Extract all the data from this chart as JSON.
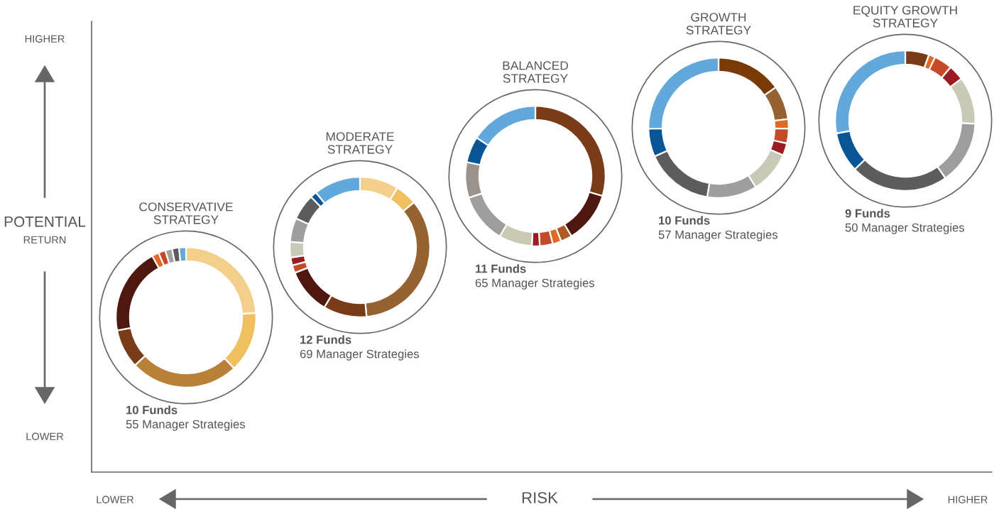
{
  "chart_data": [
    {
      "type": "other",
      "xlabel": "RISK",
      "ylabel": "POTENTIAL RETURN",
      "annotations": [
        "HIGHER",
        "LOWER",
        "LOWER",
        "HIGHER"
      ]
    },
    {
      "type": "donut",
      "title": "CONSERVATIVE\nSTRATEGY",
      "annotations": [
        "10 Funds",
        "55 Manager Strategies"
      ],
      "categories": [
        null,
        null,
        null,
        null,
        null,
        null,
        null,
        null,
        null,
        null
      ],
      "values": [
        24,
        14,
        25,
        9,
        20,
        1.6,
        1.6,
        1.6,
        1.6,
        1.6
      ],
      "colors": [
        "#f2cf8a",
        "#f0c060",
        "#b98038",
        "#7a3b19",
        "#4e1810",
        "#e06a25",
        "#c44a28",
        "#a0a0a0",
        "#5c5c5c",
        "#62a8da"
      ]
    },
    {
      "type": "donut",
      "title": "MODERATE\nSTRATEGY",
      "annotations": [
        "12 Funds",
        "69 Manager Strategies"
      ],
      "categories": [
        null,
        null,
        null,
        null,
        null,
        null,
        null,
        null,
        null,
        null,
        null,
        null
      ],
      "values": [
        9,
        5,
        34.5,
        10,
        10.5,
        1.8,
        1.8,
        3.6,
        5.5,
        6,
        1.5,
        10.8
      ],
      "colors": [
        "#f2cf8a",
        "#f0c060",
        "#956331",
        "#7a3b19",
        "#4e1810",
        "#c44a28",
        "#9a1c22",
        "#c9c9b8",
        "#9e9e9e",
        "#5c5c5c",
        "#0a5596",
        "#62a8da"
      ]
    },
    {
      "type": "donut",
      "title": "BALANCED\nSTRATEGY",
      "annotations": [
        "11 Funds",
        "65 Manager Strategies"
      ],
      "categories": [
        null,
        null,
        null,
        null,
        null,
        null,
        null,
        null,
        null,
        null,
        null
      ],
      "values": [
        29.6,
        11.8,
        2.6,
        2,
        3,
        1.8,
        7.7,
        11.5,
        8.2,
        6,
        15.8
      ],
      "colors": [
        "#7a3b19",
        "#4e1810",
        "#b05a25",
        "#e06a25",
        "#c44a28",
        "#9a1c22",
        "#c9c9b4",
        "#9e9e9e",
        "#9a938d",
        "#0a5596",
        "#62a8da"
      ]
    },
    {
      "type": "donut",
      "title": "GROWTH\nSTRATEGY",
      "annotations": [
        "10 Funds",
        "57 Manager Strategies"
      ],
      "categories": [
        null,
        null,
        null,
        null,
        null,
        null,
        null,
        null,
        null,
        null
      ],
      "values": [
        15.2,
        7.8,
        2.2,
        3.4,
        2.8,
        9.7,
        11.5,
        15.7,
        6.5,
        25.2
      ],
      "colors": [
        "#7a3a05",
        "#956331",
        "#e06a25",
        "#c44a28",
        "#9a1c22",
        "#c9c9b8",
        "#9e9e9e",
        "#5c5c5c",
        "#0a5596",
        "#62a8da"
      ]
    },
    {
      "type": "donut",
      "title": "EQUITY GROWTH\nSTRATEGY",
      "annotations": [
        "9 Funds",
        "50 Manager Strategies"
      ],
      "categories": [
        null,
        null,
        null,
        null,
        null,
        null,
        null,
        null,
        null
      ],
      "values": [
        5.5,
        1.5,
        4.2,
        3.6,
        10.9,
        14.6,
        22.5,
        9.3,
        27.9
      ],
      "colors": [
        "#7a3b19",
        "#e06a25",
        "#c44a28",
        "#9a1c22",
        "#c9c9b8",
        "#9e9e9e",
        "#5c5c5c",
        "#0a5596",
        "#62a8da"
      ]
    }
  ]
}
